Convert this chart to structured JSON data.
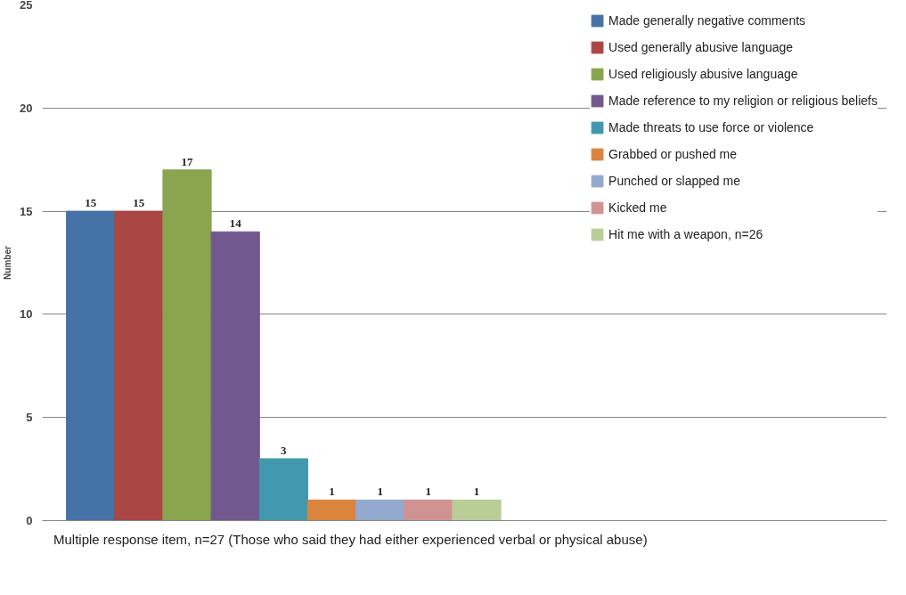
{
  "chart_data": {
    "type": "bar",
    "ylabel": "Number",
    "categories": [
      null
    ],
    "series": [
      {
        "name": "Made generally negative comments",
        "color": "#4572a7",
        "values": [
          15
        ]
      },
      {
        "name": "Used generally abusive language",
        "color": "#aa4643",
        "values": [
          15
        ]
      },
      {
        "name": "Used religiously abusive language",
        "color": "#89a54e",
        "values": [
          17
        ]
      },
      {
        "name": "Made reference to my religion or religious beliefs",
        "color": "#71588f",
        "values": [
          14
        ]
      },
      {
        "name": "Made threats to use force or violence",
        "color": "#4198af",
        "values": [
          3
        ]
      },
      {
        "name": "Grabbed or pushed me",
        "color": "#db843d",
        "values": [
          1
        ]
      },
      {
        "name": "Punched or slapped me",
        "color": "#93a9cf",
        "values": [
          1
        ]
      },
      {
        "name": "Kicked me",
        "color": "#d19392",
        "values": [
          1
        ]
      },
      {
        "name": "Hit me with a weapon, n=26",
        "color": "#b9cd96",
        "values": [
          1
        ]
      }
    ],
    "ylim": [
      0,
      25
    ],
    "yticks": [
      0,
      5,
      10,
      15,
      20,
      25
    ],
    "grid": "y",
    "legend": "right",
    "data_labels": true,
    "annotations": [
      "Multiple response item, n=27 (Those who said they had either experienced verbal or physical abuse)"
    ]
  }
}
